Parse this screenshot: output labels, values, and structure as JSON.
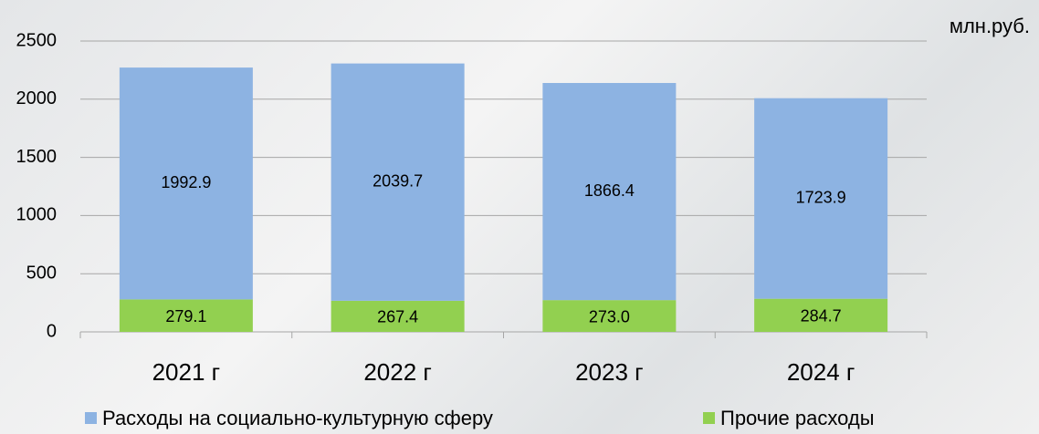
{
  "chart_data": {
    "type": "stacked_bar",
    "unit_label": "млн.руб.",
    "categories": [
      "2021 г",
      "2022 г",
      "2023 г",
      "2024 г"
    ],
    "series": [
      {
        "name": "Прочие расходы",
        "color": "#92d050",
        "values": [
          279.1,
          267.4,
          273.0,
          284.7
        ],
        "value_labels": [
          "279.1",
          "267.4",
          "273.0",
          "284.7"
        ]
      },
      {
        "name": "Расходы на социально-культурную сферу",
        "color": "#8db3e2",
        "values": [
          1992.9,
          2039.7,
          1866.4,
          1723.9
        ]
      }
    ],
    "ylim": [
      0,
      2500
    ],
    "yticks": [
      0,
      500,
      1000,
      1500,
      2000,
      2500
    ],
    "grid": true
  }
}
